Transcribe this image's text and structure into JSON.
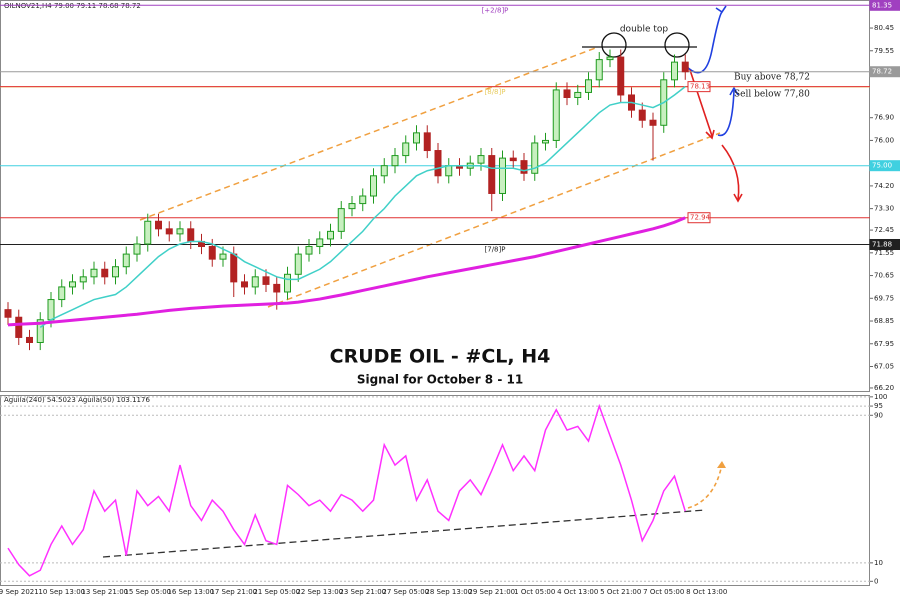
{
  "header": "OILNOV21,H4  79.00 79.11 78.68 78.72",
  "chart_data": [
    {
      "type": "candlestick",
      "title": "CRUDE OIL - #CL, H4",
      "subtitle": "Signal for October 8 - 11",
      "annotations": [
        "double top",
        "Buy above 78,72",
        "Sell below 77,80"
      ],
      "categories": [
        null,
        "9 Sep 2021",
        null,
        null,
        null,
        "10 Sep 13:00",
        null,
        null,
        null,
        "13 Sep 21:00",
        null,
        null,
        null,
        "15 Sep 05:00",
        null,
        null,
        null,
        "16 Sep 13:00",
        null,
        null,
        null,
        "17 Sep 21:00",
        null,
        null,
        null,
        "21 Sep 05:00",
        null,
        null,
        null,
        "22 Sep 13:00",
        null,
        null,
        null,
        "23 Sep 21:00",
        null,
        null,
        null,
        "27 Sep 05:00",
        null,
        null,
        null,
        "28 Sep 13:00",
        null,
        null,
        null,
        "29 Sep 21:00",
        null,
        null,
        null,
        "1 Oct 05:00",
        null,
        null,
        null,
        "4 Oct 13:00",
        null,
        null,
        null,
        "5 Oct 21:00",
        null,
        null,
        null,
        "7 Oct 05:00",
        null,
        null,
        null,
        "8 Oct 13:00"
      ],
      "open": [
        69.3,
        69.0,
        68.2,
        68.0,
        68.9,
        69.7,
        70.2,
        70.4,
        70.6,
        70.9,
        70.6,
        71.0,
        71.5,
        71.9,
        72.8,
        72.5,
        72.3,
        72.5,
        72.0,
        71.8,
        71.3,
        71.5,
        70.4,
        70.2,
        70.6,
        70.3,
        70.0,
        70.7,
        71.5,
        71.8,
        72.1,
        72.4,
        73.3,
        73.5,
        73.8,
        74.6,
        75.0,
        75.4,
        75.9,
        76.3,
        75.6,
        74.6,
        75.0,
        74.9,
        75.1,
        75.4,
        73.9,
        75.3,
        75.2,
        74.7,
        75.9,
        76.0,
        78.0,
        77.7,
        77.9,
        78.4,
        79.2,
        79.3,
        77.8,
        77.2,
        76.8,
        76.6,
        78.4,
        79.1,
        null,
        null
      ],
      "high": [
        69.6,
        69.3,
        68.5,
        69.2,
        70.0,
        70.5,
        70.7,
        70.9,
        71.2,
        71.2,
        71.3,
        71.8,
        72.2,
        73.1,
        73.1,
        72.8,
        72.8,
        72.8,
        72.3,
        72.1,
        71.8,
        71.8,
        70.7,
        70.9,
        70.9,
        70.6,
        71.0,
        71.8,
        72.1,
        72.4,
        72.7,
        73.6,
        73.8,
        74.1,
        74.9,
        75.3,
        75.7,
        76.2,
        76.6,
        76.6,
        75.9,
        75.3,
        75.3,
        75.4,
        75.7,
        75.7,
        75.6,
        75.6,
        75.5,
        76.2,
        76.3,
        78.3,
        78.3,
        78.2,
        78.7,
        79.5,
        79.6,
        79.6,
        78.1,
        77.5,
        77.1,
        78.7,
        79.4,
        79.4,
        null,
        null
      ],
      "low": [
        68.7,
        67.9,
        67.7,
        67.7,
        68.6,
        69.4,
        69.9,
        70.1,
        70.3,
        70.3,
        70.3,
        70.7,
        71.2,
        71.6,
        72.2,
        72.0,
        72.0,
        71.7,
        71.5,
        71.0,
        71.0,
        69.8,
        69.9,
        69.9,
        70.0,
        69.3,
        69.7,
        70.4,
        71.2,
        71.5,
        71.8,
        72.1,
        73.0,
        73.2,
        73.5,
        74.3,
        74.7,
        75.1,
        75.6,
        75.3,
        74.3,
        74.3,
        74.6,
        74.6,
        74.8,
        73.2,
        73.6,
        74.9,
        74.4,
        74.4,
        75.6,
        75.7,
        77.4,
        77.4,
        77.6,
        78.1,
        78.9,
        77.5,
        76.9,
        76.5,
        75.2,
        76.3,
        78.1,
        78.4,
        null,
        null
      ],
      "close": [
        69.0,
        68.2,
        68.0,
        68.9,
        69.7,
        70.2,
        70.4,
        70.6,
        70.9,
        70.6,
        71.0,
        71.5,
        71.9,
        72.8,
        72.5,
        72.3,
        72.5,
        72.0,
        71.8,
        71.3,
        71.5,
        70.4,
        70.2,
        70.6,
        70.3,
        70.0,
        70.7,
        71.5,
        71.8,
        72.1,
        72.4,
        73.3,
        73.5,
        73.8,
        74.6,
        75.0,
        75.4,
        75.9,
        76.3,
        75.6,
        74.6,
        75.0,
        74.9,
        75.1,
        75.4,
        73.9,
        75.3,
        75.2,
        74.7,
        75.9,
        76.0,
        78.0,
        77.7,
        77.9,
        78.4,
        79.2,
        79.3,
        77.8,
        77.2,
        76.8,
        76.6,
        78.4,
        79.1,
        78.72,
        null,
        null
      ],
      "up_color": "#1f9a1f",
      "down_color": "#b22222",
      "series": [
        {
          "color": "#40d0c8",
          "values": [
            null,
            null,
            null,
            68.6,
            68.9,
            69.1,
            69.3,
            69.5,
            69.7,
            69.8,
            69.9,
            70.2,
            70.6,
            71.0,
            71.4,
            71.7,
            71.9,
            72.0,
            72.0,
            71.9,
            71.7,
            71.5,
            71.2,
            71.0,
            70.8,
            70.6,
            70.5,
            70.5,
            70.7,
            70.9,
            71.2,
            71.6,
            72.0,
            72.4,
            72.9,
            73.3,
            73.8,
            74.2,
            74.6,
            74.8,
            74.9,
            75.0,
            75.0,
            75.0,
            75.0,
            74.9,
            74.9,
            74.9,
            74.8,
            74.9,
            75.1,
            75.5,
            75.9,
            76.3,
            76.7,
            77.1,
            77.4,
            77.5,
            77.5,
            77.4,
            77.3,
            77.5,
            77.8,
            78.13,
            null,
            null
          ]
        },
        {
          "color": "#e020e0",
          "values": [
            68.7,
            68.72,
            68.74,
            68.76,
            68.8,
            68.84,
            68.88,
            68.92,
            68.96,
            69.0,
            69.04,
            69.08,
            69.12,
            69.17,
            69.22,
            69.27,
            69.31,
            69.35,
            69.38,
            69.41,
            69.44,
            69.46,
            69.48,
            69.5,
            69.52,
            69.54,
            69.56,
            69.6,
            69.66,
            69.72,
            69.8,
            69.88,
            69.97,
            70.06,
            70.15,
            70.24,
            70.33,
            70.42,
            70.51,
            70.6,
            70.68,
            70.76,
            70.84,
            70.92,
            71.0,
            71.08,
            71.16,
            71.24,
            71.32,
            71.4,
            71.5,
            71.6,
            71.7,
            71.8,
            71.9,
            72.0,
            72.1,
            72.2,
            72.3,
            72.4,
            72.5,
            72.62,
            72.76,
            72.94,
            null,
            null
          ]
        }
      ],
      "ylim": [
        66.04,
        81.56
      ],
      "yticks": [
        80.45,
        79.55,
        {
          "value": 76.9,
          "label": "76.90"
        },
        {
          "value": 76,
          "label": "76.00"
        },
        {
          "value": 74.2,
          "label": "74.20"
        },
        {
          "value": 73.3,
          "label": "73.30"
        },
        72.45,
        71.55,
        70.65,
        69.75,
        68.85,
        67.95,
        67.05,
        {
          "value": 66.2,
          "label": "66.20"
        }
      ],
      "price_lines": [
        {
          "name": "[+2/8]P",
          "value": 81.35,
          "color": "#a040c0"
        },
        {
          "value": 78.72,
          "color": "#9a9a9a"
        },
        {
          "name": "[8/8]P",
          "value": 78.12,
          "color": "#e8cc60"
        },
        {
          "value": 78.13,
          "color": "#e03030"
        },
        {
          "value": 75,
          "label": "75.00",
          "color": "#40d0e0"
        },
        {
          "value": 72.94,
          "color": "#e03030"
        },
        {
          "name": "[7/8]P",
          "value": 71.88,
          "color": "#202020"
        }
      ]
    },
    {
      "type": "line",
      "title": "Aguila(240) 54.5023  Aguila(50) 103.1176",
      "series": [
        {
          "color": "#ff30ff",
          "values": [
            18,
            9,
            3,
            6,
            20,
            30,
            20,
            28,
            49,
            38,
            44,
            14,
            49,
            41,
            46,
            38,
            63,
            41,
            33,
            44,
            38,
            28,
            20,
            36,
            22,
            20,
            52,
            47,
            41,
            44,
            38,
            47,
            44,
            38,
            44,
            74,
            63,
            68,
            44,
            55,
            38,
            33,
            49,
            55,
            47,
            60,
            74,
            60,
            68,
            60,
            82,
            93,
            82,
            84,
            76,
            95,
            79,
            63,
            44,
            22,
            33,
            49,
            57,
            38,
            null,
            null
          ]
        }
      ],
      "ylim": [
        -2,
        101
      ],
      "yticks": [
        100,
        95,
        90,
        10,
        0
      ]
    }
  ]
}
